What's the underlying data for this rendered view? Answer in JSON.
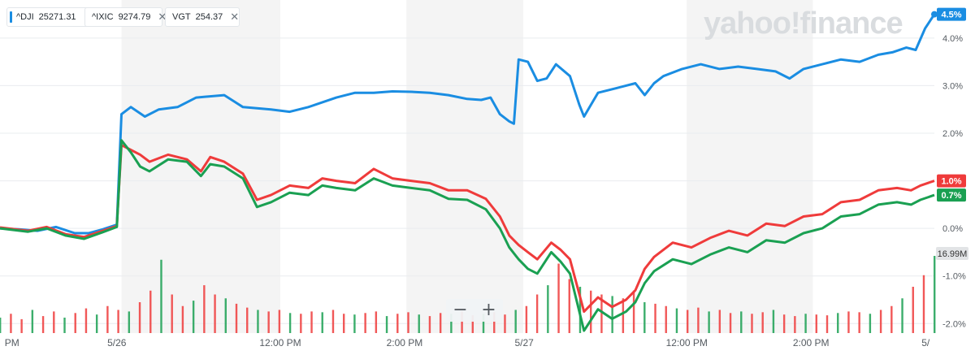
{
  "brand": {
    "logo_text": "yahoo!finance"
  },
  "legend_chips": [
    {
      "symbol": "^DJI",
      "value": "25271.31",
      "color": "#1a8de2"
    },
    {
      "symbol": "^IXIC",
      "value": "9274.79",
      "color": "#ef3b3b"
    },
    {
      "symbol": "VGT",
      "value": "254.37",
      "color": "#1aa052"
    }
  ],
  "zoom": {
    "minus": "−",
    "plus": "+"
  },
  "colors": {
    "dji": "#1a8de2",
    "ixic": "#ef3b3b",
    "vgt": "#1aa052",
    "grid": "#e9ecef",
    "band": "#f4f4f4",
    "text": "#555b61"
  },
  "chart_data": {
    "type": "line",
    "y_unit": "%",
    "ylim": [
      -2.2,
      4.8
    ],
    "y_ticks": [
      "4.0%",
      "3.0%",
      "2.0%",
      "1.0%",
      "0.0%",
      "-1.0%",
      "-2.0%"
    ],
    "y_tick_values": [
      4,
      3,
      2,
      1,
      0,
      -1,
      -2
    ],
    "x_ticks": [
      {
        "label": "PM",
        "t": 0.005
      },
      {
        "label": "5/26",
        "t": 0.125
      },
      {
        "label": "12:00 PM",
        "t": 0.3
      },
      {
        "label": "2:00 PM",
        "t": 0.433
      },
      {
        "label": "5/27",
        "t": 0.561
      },
      {
        "label": "12:00 PM",
        "t": 0.735
      },
      {
        "label": "2:00 PM",
        "t": 0.868
      },
      {
        "label": "5/",
        "t": 0.995
      }
    ],
    "end_labels": [
      {
        "label": "4.5%",
        "value": 4.5,
        "color": "#1a8de2"
      },
      {
        "label": "1.0%",
        "value": 1.0,
        "color": "#ef3b3b"
      },
      {
        "label": "0.7%",
        "value": 0.7,
        "color": "#1aa052"
      }
    ],
    "volume_label": "16.99M",
    "series": [
      {
        "name": "^DJI",
        "color": "#1a8de2",
        "points": [
          [
            0,
            0
          ],
          [
            0.02,
            -0.02
          ],
          [
            0.04,
            -0.05
          ],
          [
            0.06,
            0.03
          ],
          [
            0.08,
            -0.1
          ],
          [
            0.095,
            -0.1
          ],
          [
            0.11,
            -0.02
          ],
          [
            0.125,
            0.08
          ],
          [
            0.13,
            2.4
          ],
          [
            0.14,
            2.55
          ],
          [
            0.155,
            2.35
          ],
          [
            0.17,
            2.5
          ],
          [
            0.19,
            2.55
          ],
          [
            0.21,
            2.75
          ],
          [
            0.24,
            2.8
          ],
          [
            0.26,
            2.55
          ],
          [
            0.29,
            2.5
          ],
          [
            0.31,
            2.45
          ],
          [
            0.33,
            2.55
          ],
          [
            0.36,
            2.75
          ],
          [
            0.38,
            2.85
          ],
          [
            0.4,
            2.85
          ],
          [
            0.42,
            2.88
          ],
          [
            0.44,
            2.87
          ],
          [
            0.46,
            2.85
          ],
          [
            0.48,
            2.8
          ],
          [
            0.5,
            2.72
          ],
          [
            0.515,
            2.7
          ],
          [
            0.525,
            2.75
          ],
          [
            0.535,
            2.4
          ],
          [
            0.545,
            2.25
          ],
          [
            0.55,
            2.2
          ],
          [
            0.555,
            3.55
          ],
          [
            0.565,
            3.5
          ],
          [
            0.575,
            3.1
          ],
          [
            0.585,
            3.15
          ],
          [
            0.595,
            3.45
          ],
          [
            0.61,
            3.2
          ],
          [
            0.62,
            2.6
          ],
          [
            0.625,
            2.35
          ],
          [
            0.64,
            2.85
          ],
          [
            0.66,
            2.95
          ],
          [
            0.68,
            3.05
          ],
          [
            0.69,
            2.8
          ],
          [
            0.7,
            3.05
          ],
          [
            0.71,
            3.2
          ],
          [
            0.73,
            3.35
          ],
          [
            0.75,
            3.45
          ],
          [
            0.77,
            3.35
          ],
          [
            0.79,
            3.4
          ],
          [
            0.81,
            3.35
          ],
          [
            0.83,
            3.3
          ],
          [
            0.845,
            3.15
          ],
          [
            0.86,
            3.35
          ],
          [
            0.88,
            3.45
          ],
          [
            0.9,
            3.55
          ],
          [
            0.92,
            3.5
          ],
          [
            0.94,
            3.65
          ],
          [
            0.955,
            3.7
          ],
          [
            0.97,
            3.8
          ],
          [
            0.98,
            3.75
          ],
          [
            0.99,
            4.2
          ],
          [
            1.0,
            4.5
          ]
        ]
      },
      {
        "name": "^IXIC",
        "color": "#ef3b3b",
        "points": [
          [
            0,
            0.02
          ],
          [
            0.03,
            -0.05
          ],
          [
            0.05,
            0.03
          ],
          [
            0.07,
            -0.12
          ],
          [
            0.09,
            -0.18
          ],
          [
            0.11,
            -0.05
          ],
          [
            0.125,
            0.05
          ],
          [
            0.13,
            1.75
          ],
          [
            0.14,
            1.65
          ],
          [
            0.15,
            1.55
          ],
          [
            0.16,
            1.4
          ],
          [
            0.18,
            1.55
          ],
          [
            0.2,
            1.45
          ],
          [
            0.215,
            1.2
          ],
          [
            0.225,
            1.5
          ],
          [
            0.24,
            1.4
          ],
          [
            0.26,
            1.15
          ],
          [
            0.275,
            0.6
          ],
          [
            0.29,
            0.7
          ],
          [
            0.31,
            0.9
          ],
          [
            0.33,
            0.85
          ],
          [
            0.345,
            1.05
          ],
          [
            0.36,
            1.0
          ],
          [
            0.38,
            0.95
          ],
          [
            0.4,
            1.25
          ],
          [
            0.42,
            1.05
          ],
          [
            0.44,
            1.0
          ],
          [
            0.46,
            0.95
          ],
          [
            0.48,
            0.8
          ],
          [
            0.5,
            0.8
          ],
          [
            0.52,
            0.62
          ],
          [
            0.535,
            0.25
          ],
          [
            0.545,
            -0.15
          ],
          [
            0.555,
            -0.35
          ],
          [
            0.565,
            -0.5
          ],
          [
            0.575,
            -0.65
          ],
          [
            0.59,
            -0.3
          ],
          [
            0.6,
            -0.45
          ],
          [
            0.61,
            -0.65
          ],
          [
            0.625,
            -1.75
          ],
          [
            0.64,
            -1.45
          ],
          [
            0.655,
            -1.65
          ],
          [
            0.67,
            -1.5
          ],
          [
            0.68,
            -1.3
          ],
          [
            0.69,
            -0.85
          ],
          [
            0.7,
            -0.6
          ],
          [
            0.72,
            -0.3
          ],
          [
            0.74,
            -0.4
          ],
          [
            0.76,
            -0.2
          ],
          [
            0.78,
            -0.05
          ],
          [
            0.8,
            -0.15
          ],
          [
            0.82,
            0.1
          ],
          [
            0.84,
            0.05
          ],
          [
            0.86,
            0.25
          ],
          [
            0.88,
            0.3
          ],
          [
            0.9,
            0.55
          ],
          [
            0.92,
            0.6
          ],
          [
            0.94,
            0.8
          ],
          [
            0.96,
            0.85
          ],
          [
            0.975,
            0.8
          ],
          [
            0.985,
            0.9
          ],
          [
            1.0,
            1.0
          ]
        ]
      },
      {
        "name": "VGT",
        "color": "#1aa052",
        "points": [
          [
            0,
            0.0
          ],
          [
            0.03,
            -0.07
          ],
          [
            0.05,
            0.0
          ],
          [
            0.07,
            -0.15
          ],
          [
            0.09,
            -0.22
          ],
          [
            0.11,
            -0.08
          ],
          [
            0.125,
            0.03
          ],
          [
            0.13,
            1.85
          ],
          [
            0.14,
            1.6
          ],
          [
            0.15,
            1.3
          ],
          [
            0.16,
            1.2
          ],
          [
            0.18,
            1.45
          ],
          [
            0.2,
            1.4
          ],
          [
            0.215,
            1.1
          ],
          [
            0.225,
            1.35
          ],
          [
            0.24,
            1.3
          ],
          [
            0.26,
            1.05
          ],
          [
            0.275,
            0.45
          ],
          [
            0.29,
            0.55
          ],
          [
            0.31,
            0.75
          ],
          [
            0.33,
            0.7
          ],
          [
            0.345,
            0.9
          ],
          [
            0.36,
            0.85
          ],
          [
            0.38,
            0.8
          ],
          [
            0.4,
            1.05
          ],
          [
            0.42,
            0.9
          ],
          [
            0.44,
            0.85
          ],
          [
            0.46,
            0.8
          ],
          [
            0.48,
            0.62
          ],
          [
            0.5,
            0.6
          ],
          [
            0.52,
            0.4
          ],
          [
            0.535,
            0.0
          ],
          [
            0.545,
            -0.4
          ],
          [
            0.555,
            -0.65
          ],
          [
            0.565,
            -0.85
          ],
          [
            0.575,
            -0.95
          ],
          [
            0.59,
            -0.5
          ],
          [
            0.6,
            -0.7
          ],
          [
            0.61,
            -0.95
          ],
          [
            0.625,
            -2.15
          ],
          [
            0.64,
            -1.7
          ],
          [
            0.655,
            -1.9
          ],
          [
            0.67,
            -1.75
          ],
          [
            0.68,
            -1.55
          ],
          [
            0.69,
            -1.15
          ],
          [
            0.7,
            -0.9
          ],
          [
            0.72,
            -0.65
          ],
          [
            0.74,
            -0.75
          ],
          [
            0.76,
            -0.55
          ],
          [
            0.78,
            -0.4
          ],
          [
            0.8,
            -0.5
          ],
          [
            0.82,
            -0.25
          ],
          [
            0.84,
            -0.3
          ],
          [
            0.86,
            -0.1
          ],
          [
            0.88,
            0.0
          ],
          [
            0.9,
            0.25
          ],
          [
            0.92,
            0.3
          ],
          [
            0.94,
            0.5
          ],
          [
            0.96,
            0.55
          ],
          [
            0.975,
            0.5
          ],
          [
            0.985,
            0.6
          ],
          [
            1.0,
            0.7
          ]
        ]
      }
    ],
    "volume_bars": [
      0.2,
      0.25,
      0.18,
      0.3,
      0.22,
      0.28,
      0.2,
      0.26,
      0.32,
      0.24,
      0.35,
      0.3,
      0.28,
      0.4,
      0.55,
      0.95,
      0.5,
      0.35,
      0.42,
      0.62,
      0.5,
      0.45,
      0.38,
      0.33,
      0.3,
      0.28,
      0.3,
      0.26,
      0.25,
      0.28,
      0.27,
      0.3,
      0.25,
      0.24,
      0.26,
      0.28,
      0.22,
      0.25,
      0.27,
      0.24,
      0.22,
      0.26,
      0.25,
      0.28,
      0.23,
      0.25,
      0.27,
      0.24,
      0.3,
      0.35,
      0.5,
      0.62,
      0.9,
      0.7,
      0.6,
      0.55,
      0.5,
      0.48,
      0.45,
      0.55,
      0.4,
      0.38,
      0.35,
      0.32,
      0.3,
      0.33,
      0.28,
      0.3,
      0.26,
      0.28,
      0.25,
      0.27,
      0.3,
      0.24,
      0.22,
      0.25,
      0.24,
      0.23,
      0.26,
      0.28,
      0.27,
      0.25,
      0.3,
      0.35,
      0.45,
      0.6,
      0.75,
      1.0
    ]
  }
}
